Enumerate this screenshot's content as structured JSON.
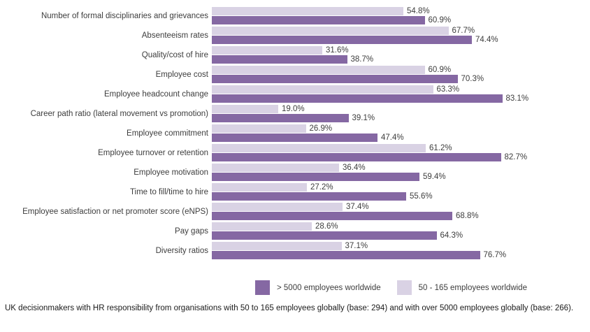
{
  "chart_data": {
    "type": "bar",
    "orientation": "horizontal",
    "title": "",
    "xlabel": "",
    "ylabel": "",
    "xlim": [
      0,
      100
    ],
    "grid": false,
    "value_suffix": "%",
    "value_decimals": 1,
    "legend_position": "bottom",
    "categories": [
      "Number of formal disciplinaries and grievances",
      "Absenteeism rates",
      "Quality/cost of hire",
      "Employee cost",
      "Employee headcount change",
      "Career path ratio (lateral movement vs promotion)",
      "Employee commitment",
      "Employee turnover or retention",
      "Employee motivation",
      "Time to fill/time to hire",
      "Employee satisfaction or net promoter score (eNPS)",
      "Pay gaps",
      "Diversity ratios"
    ],
    "series": [
      {
        "id": "gt-5000",
        "name": "> 5000 employees worldwide",
        "color": "#8568A3",
        "values": [
          60.9,
          74.4,
          38.7,
          70.3,
          83.1,
          39.1,
          47.4,
          82.7,
          59.4,
          55.6,
          68.8,
          64.3,
          76.7
        ]
      },
      {
        "id": "50-165",
        "name": "50 - 165 employees worldwide",
        "color": "#D9D2E4",
        "values": [
          54.8,
          67.7,
          31.6,
          60.9,
          63.3,
          19.0,
          26.9,
          61.2,
          36.4,
          27.2,
          37.4,
          28.6,
          37.1
        ]
      }
    ],
    "bar_display_order": [
      1,
      0
    ]
  },
  "footer": {
    "text": "UK decisionmakers with HR responsibility from organisations with 50 to 165 employees globally (base: 294) and with over 5000 employees globally (base: 266)."
  }
}
